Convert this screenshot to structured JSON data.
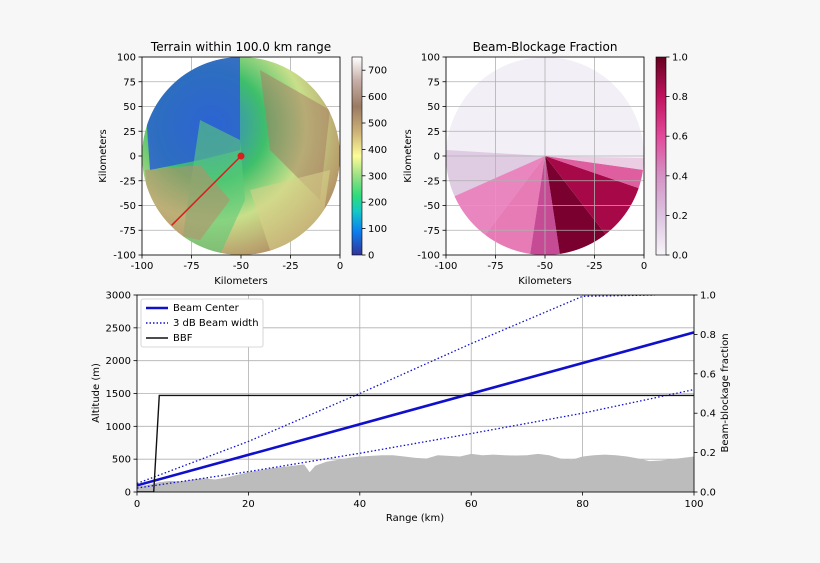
{
  "chart_data": [
    {
      "type": "heatmap",
      "title": "Terrain within 100.0 km range",
      "xlabel": "Kilometers",
      "ylabel": "Kilometers",
      "xlim": [
        -100,
        0
      ],
      "ylim": [
        -100,
        100
      ],
      "xticks": [
        -100,
        -75,
        -50,
        -25,
        0
      ],
      "yticks": [
        100,
        75,
        50,
        25,
        0,
        -25,
        -50,
        -75,
        -100
      ],
      "colorbar": {
        "min": 0,
        "max": 750,
        "ticks": [
          0,
          100,
          200,
          300,
          400,
          500,
          600,
          700
        ],
        "colormap": "terrain"
      },
      "radar_center_km": [
        -50,
        0
      ],
      "beam_line_km": [
        [
          -50,
          0
        ],
        [
          -85,
          -70
        ]
      ],
      "radar_color": "#d62020"
    },
    {
      "type": "heatmap",
      "title": "Beam-Blockage Fraction",
      "xlabel": "Kilometers",
      "ylabel": "Kilometers",
      "xlim": [
        -100,
        0
      ],
      "ylim": [
        -100,
        100
      ],
      "xticks": [
        -100,
        -75,
        -50,
        -25,
        0
      ],
      "yticks": [
        100,
        75,
        50,
        25,
        0,
        -25,
        -50,
        -75,
        -100
      ],
      "colorbar": {
        "min": 0.0,
        "max": 1.0,
        "ticks": [
          "0.0",
          "0.2",
          "0.4",
          "0.6",
          "0.8",
          "1.0"
        ],
        "colormap": "PuRd"
      }
    },
    {
      "type": "line",
      "xlabel": "Range (km)",
      "ylabel": "Altitude (m)",
      "y2label": "Beam-blockage fraction",
      "xlim": [
        0,
        100
      ],
      "ylim": [
        0,
        3000
      ],
      "y2lim": [
        0,
        1
      ],
      "xticks": [
        0,
        20,
        40,
        60,
        80,
        100
      ],
      "yticks": [
        0,
        500,
        1000,
        1500,
        2000,
        2500,
        3000
      ],
      "y2ticks": [
        "0.0",
        "0.2",
        "0.4",
        "0.6",
        "0.8",
        "1.0"
      ],
      "grid": true,
      "legend": "top-left",
      "series": [
        {
          "name": "Beam Center",
          "color": "#1010cc",
          "style": "solid",
          "x": [
            0,
            100
          ],
          "y": [
            100,
            2430
          ]
        },
        {
          "name": "3 dB Beam width",
          "color": "#1010cc",
          "style": "dotted",
          "x": [
            0,
            20,
            40,
            60,
            80,
            93
          ],
          "y": [
            130,
            770,
            1500,
            2260,
            2980,
            3000
          ]
        },
        {
          "name": "3 dB Beam width lower",
          "color": "#1010cc",
          "style": "dotted",
          "x": [
            0,
            20,
            40,
            60,
            80,
            100
          ],
          "y": [
            60,
            310,
            590,
            890,
            1200,
            1560
          ]
        },
        {
          "name": "BBF",
          "color": "#111111",
          "style": "solid",
          "axis": "y2",
          "x": [
            0,
            3,
            4,
            100
          ],
          "y": [
            0,
            0,
            0.49,
            0.49
          ]
        }
      ],
      "terrain": {
        "color": "#bcbcbc",
        "x": [
          0,
          2,
          4,
          6,
          8,
          10,
          12,
          14,
          16,
          18,
          20,
          22,
          24,
          26,
          28,
          30,
          31,
          32,
          34,
          36,
          38,
          40,
          42,
          44,
          46,
          48,
          50,
          52,
          54,
          56,
          58,
          60,
          62,
          64,
          66,
          68,
          70,
          72,
          74,
          76,
          78,
          80,
          82,
          84,
          86,
          88,
          90,
          92,
          94,
          96,
          98,
          100
        ],
        "y": [
          80,
          110,
          150,
          170,
          160,
          190,
          210,
          190,
          220,
          260,
          300,
          330,
          360,
          380,
          400,
          420,
          300,
          400,
          460,
          490,
          520,
          540,
          550,
          560,
          560,
          540,
          520,
          510,
          560,
          550,
          540,
          580,
          560,
          570,
          560,
          555,
          560,
          580,
          560,
          510,
          490,
          540,
          560,
          570,
          560,
          540,
          510,
          470,
          480,
          500,
          520,
          540
        ]
      }
    }
  ]
}
